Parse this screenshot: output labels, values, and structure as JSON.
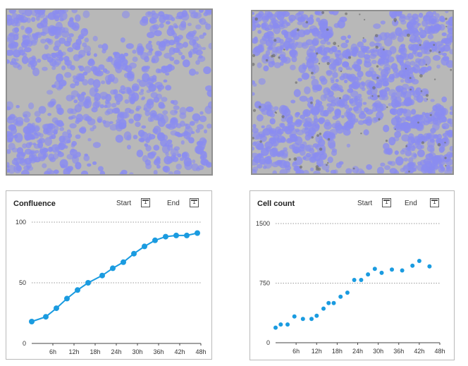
{
  "colors": {
    "accent": "#1a9be0",
    "gridline": "#9a9a9a",
    "axis": "#444444",
    "cell_stain": "#8a8cf0",
    "background_gray": "#b8b8b8"
  },
  "panels": [
    {
      "title": "Confluence",
      "start_label": "Start",
      "end_label": "End",
      "start_icon_text": "1",
      "end_icon_text": "1",
      "icons": [
        "calendar-icon",
        "calendar-icon"
      ]
    },
    {
      "title": "Cell count",
      "start_label": "Start",
      "end_label": "End",
      "start_icon_text": "1",
      "end_icon_text": "1",
      "icons": [
        "calendar-icon",
        "calendar-icon"
      ]
    }
  ],
  "chart_data": [
    {
      "type": "line",
      "title": "Confluence",
      "x_tick_labels": [
        "6h",
        "12h",
        "18h",
        "24h",
        "30h",
        "36h",
        "42h",
        "48h"
      ],
      "y_tick_labels": [
        "0",
        "50",
        "100"
      ],
      "ylim": [
        0,
        100
      ],
      "xlim": [
        0,
        48
      ],
      "grid": "horizontal dotted at 50 and 100",
      "series": [
        {
          "x": [
            0,
            4,
            7,
            10,
            13,
            16,
            20,
            23,
            26,
            29,
            32,
            35,
            38,
            41,
            44,
            47
          ],
          "y": [
            18,
            22,
            29,
            37,
            44,
            50,
            56,
            62,
            67,
            74,
            80,
            85,
            88,
            89,
            89,
            91
          ],
          "markers": true,
          "smooth_line": true
        }
      ]
    },
    {
      "type": "scatter",
      "title": "Cell count",
      "x_tick_labels": [
        "6h",
        "12h",
        "18h",
        "24h",
        "30h",
        "36h",
        "42h",
        "48h"
      ],
      "y_tick_labels": [
        "0",
        "750",
        "1500"
      ],
      "ylim": [
        0,
        1500
      ],
      "xlim": [
        0,
        48
      ],
      "grid": "horizontal dotted at 750 and 1500",
      "series": [
        {
          "x": [
            0,
            1.5,
            3.5,
            5.5,
            8,
            10.5,
            12,
            14,
            15.5,
            17,
            19,
            21,
            23,
            25,
            27,
            29,
            31,
            34,
            37,
            40,
            42,
            45
          ],
          "y": [
            190,
            230,
            230,
            330,
            300,
            300,
            340,
            430,
            500,
            500,
            580,
            630,
            790,
            790,
            860,
            930,
            880,
            920,
            910,
            970,
            1030,
            960
          ]
        }
      ]
    }
  ]
}
